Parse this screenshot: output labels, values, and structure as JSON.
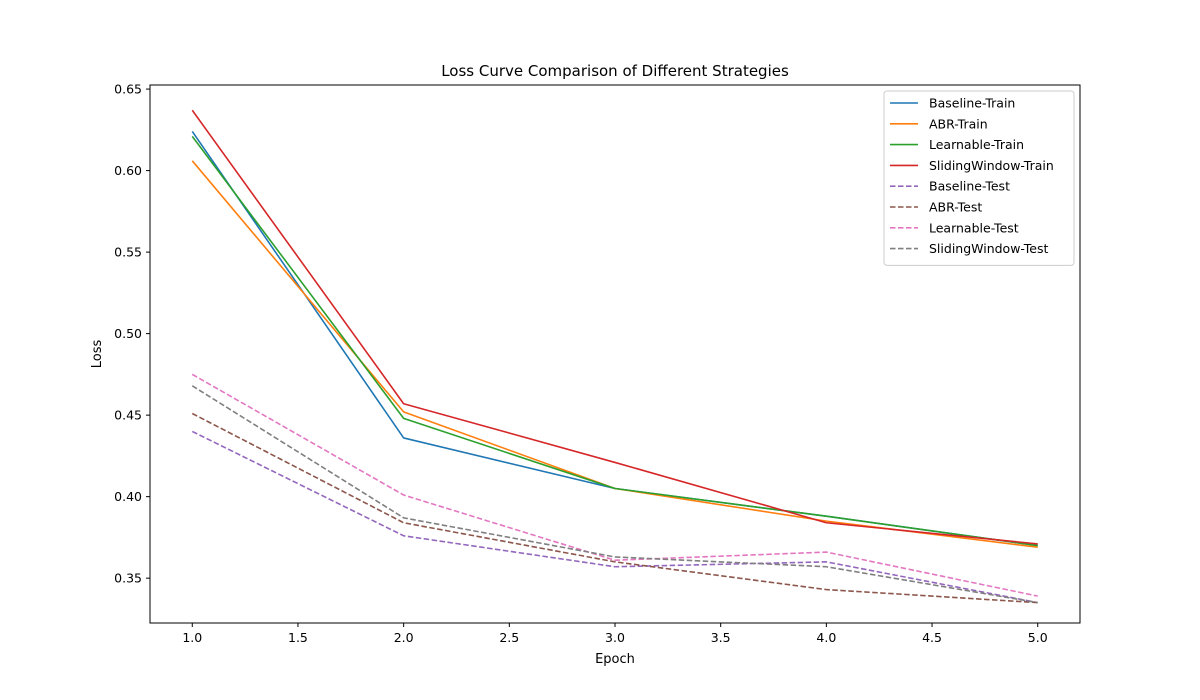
{
  "chart_data": {
    "type": "line",
    "title": "Loss Curve Comparison of Different Strategies",
    "xlabel": "Epoch",
    "ylabel": "Loss",
    "x": [
      1.0,
      2.0,
      3.0,
      4.0,
      5.0
    ],
    "xlim": [
      0.8,
      5.2
    ],
    "ylim": [
      0.3225,
      0.6525
    ],
    "xticks": [
      "1.0",
      "1.5",
      "2.0",
      "2.5",
      "3.0",
      "3.5",
      "4.0",
      "4.5",
      "5.0"
    ],
    "yticks": [
      "0.35",
      "0.40",
      "0.45",
      "0.50",
      "0.55",
      "0.60",
      "0.65"
    ],
    "grid": false,
    "legend_position": "top-right",
    "series": [
      {
        "name": "Baseline-Train",
        "color": "#1f77b4",
        "dash": false,
        "values": [
          0.624,
          0.436,
          0.405,
          0.388,
          0.37
        ]
      },
      {
        "name": "ABR-Train",
        "color": "#ff7f0e",
        "dash": false,
        "values": [
          0.606,
          0.452,
          0.405,
          0.385,
          0.369
        ]
      },
      {
        "name": "Learnable-Train",
        "color": "#2ca02c",
        "dash": false,
        "values": [
          0.621,
          0.448,
          0.405,
          0.388,
          0.37
        ]
      },
      {
        "name": "SlidingWindow-Train",
        "color": "#d62728",
        "dash": false,
        "values": [
          0.637,
          0.457,
          0.421,
          0.384,
          0.371
        ]
      },
      {
        "name": "Baseline-Test",
        "color": "#9467bd",
        "dash": true,
        "values": [
          0.44,
          0.376,
          0.357,
          0.36,
          0.335
        ]
      },
      {
        "name": "ABR-Test",
        "color": "#8c564b",
        "dash": true,
        "values": [
          0.451,
          0.384,
          0.36,
          0.343,
          0.335
        ]
      },
      {
        "name": "Learnable-Test",
        "color": "#e377c2",
        "dash": true,
        "values": [
          0.475,
          0.401,
          0.361,
          0.366,
          0.339
        ]
      },
      {
        "name": "SlidingWindow-Test",
        "color": "#7f7f7f",
        "dash": true,
        "values": [
          0.468,
          0.387,
          0.363,
          0.357,
          0.335
        ]
      }
    ]
  }
}
